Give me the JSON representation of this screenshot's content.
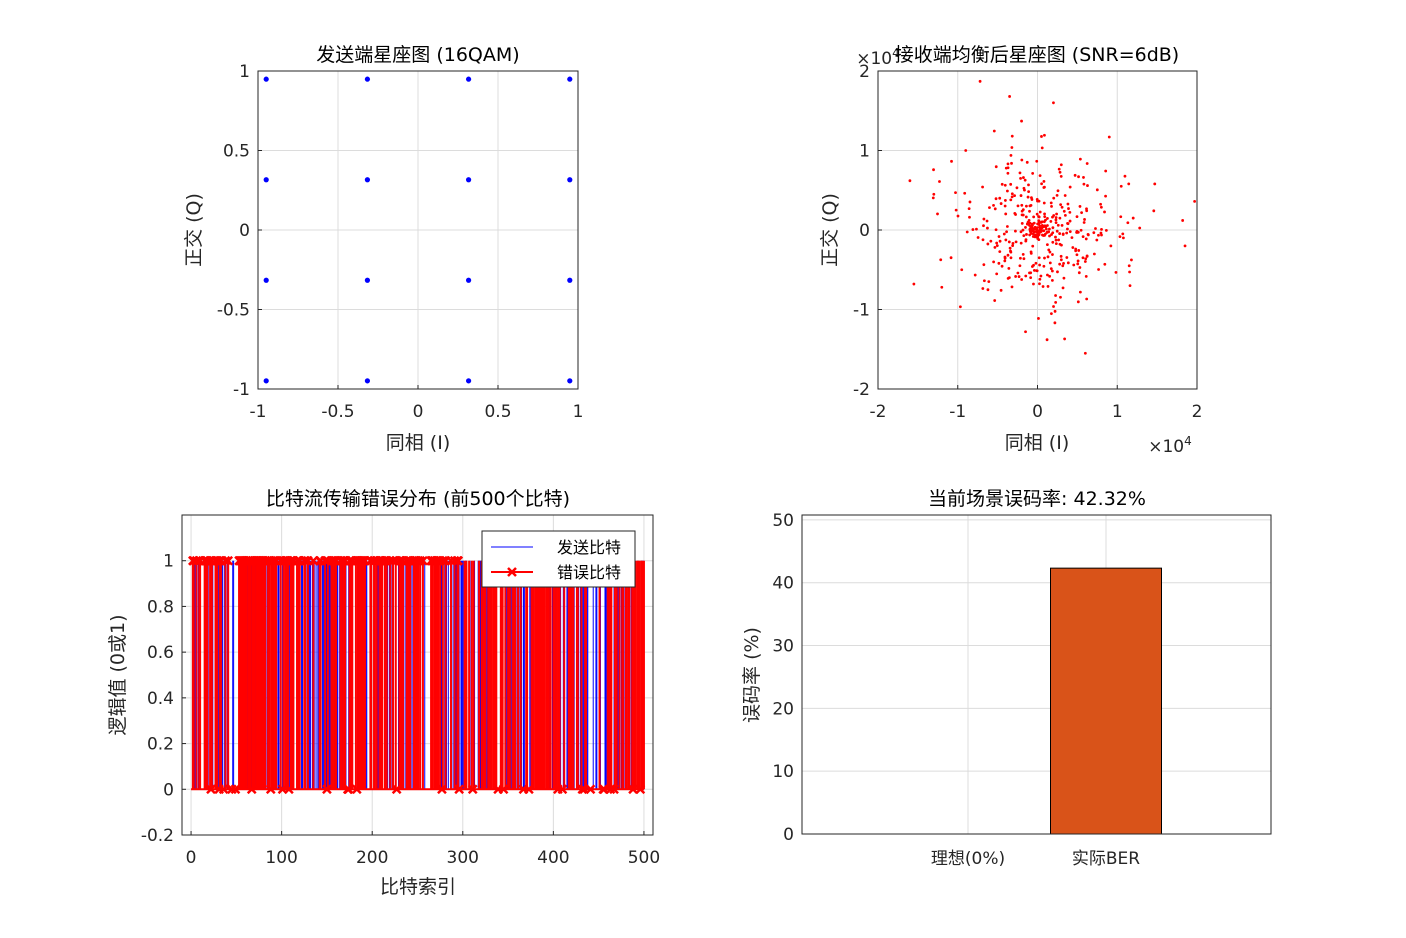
{
  "chart_data": [
    {
      "type": "scatter",
      "title": "发送端星座图 (16QAM)",
      "xlabel": "同相 (I)",
      "ylabel": "正交 (Q)",
      "xlim": [
        -1,
        1
      ],
      "ylim": [
        -1,
        1
      ],
      "xticks": [
        -1,
        -0.5,
        0,
        0.5,
        1
      ],
      "yticks": [
        -1,
        -0.5,
        0,
        0.5,
        1
      ],
      "xtick_labels": [
        "-1",
        "-0.5",
        "0",
        "0.5",
        "1"
      ],
      "ytick_labels": [
        "-1",
        "-0.5",
        "0",
        "0.5",
        "1"
      ],
      "grid": true,
      "color": "#0000ff",
      "levels": [
        -0.9487,
        -0.3162,
        0.3162,
        0.9487
      ]
    },
    {
      "type": "scatter",
      "title": "接收端均衡后星座图 (SNR=6dB)",
      "xlabel": "同相 (I)",
      "ylabel": "正交 (Q)",
      "xlim": [
        -2,
        2
      ],
      "ylim": [
        -2,
        2
      ],
      "xticks": [
        -2,
        -1,
        0,
        1,
        2
      ],
      "yticks": [
        -2,
        -1,
        0,
        1,
        2
      ],
      "xtick_labels": [
        "-2",
        "-1",
        "0",
        "1",
        "2"
      ],
      "ytick_labels": [
        "-2",
        "-1",
        "0",
        "1",
        "2"
      ],
      "x_exponent_base": "×10",
      "x_exponent_power": "4",
      "y_exponent_base": "×10",
      "y_exponent_power": "4",
      "grid": true,
      "color": "#ff0000",
      "count": 420,
      "explicit_points": [
        [
          -1.6,
          0.62
        ],
        [
          -1.55,
          -0.68
        ],
        [
          -1.3,
          0.45
        ],
        [
          -1.2,
          -0.72
        ],
        [
          -0.72,
          1.87
        ],
        [
          -0.35,
          1.68
        ],
        [
          0.2,
          1.6
        ],
        [
          -0.2,
          1.37
        ],
        [
          1.2,
          0.15
        ],
        [
          1.16,
          -0.7
        ],
        [
          1.05,
          0.55
        ],
        [
          0.6,
          -1.55
        ],
        [
          0.12,
          -1.38
        ],
        [
          -0.15,
          -1.28
        ],
        [
          0.34,
          -1.37
        ],
        [
          1.82,
          0.12
        ],
        [
          1.85,
          -0.2
        ],
        [
          1.97,
          0.36
        ],
        [
          -0.9,
          1.0
        ],
        [
          0.9,
          1.17
        ],
        [
          1.15,
          -0.45
        ],
        [
          0.92,
          -0.2
        ],
        [
          -0.95,
          -0.5
        ],
        [
          -1.02,
          0.25
        ]
      ]
    },
    {
      "type": "bar",
      "title": "比特流传输错误分布 (前500个比特)",
      "xlabel": "比特索引",
      "ylabel": "逻辑值 (0或1)",
      "xlim": [
        -10,
        510
      ],
      "ylim": [
        -0.2,
        1.2
      ],
      "xticks": [
        0,
        100,
        200,
        300,
        400,
        500
      ],
      "yticks": [
        -0.2,
        0,
        0.2,
        0.4,
        0.6,
        0.8,
        1
      ],
      "xtick_labels": [
        "0",
        "100",
        "200",
        "300",
        "400",
        "500"
      ],
      "ytick_labels": [
        "-0.2",
        "0",
        "0.2",
        "0.4",
        "0.6",
        "0.8",
        "1"
      ],
      "grid": true,
      "n_bits": 500,
      "series": [
        {
          "name": "发送比特",
          "color": "#0000ff"
        },
        {
          "name": "错误比特",
          "color": "#ff0000"
        }
      ],
      "legend_location": "top-right"
    },
    {
      "type": "bar",
      "title": "当前场景误码率: 42.32%",
      "xlabel": "",
      "ylabel": "误码率 (%)",
      "categories": [
        "理想(0%)",
        "实际BER"
      ],
      "values": [
        0,
        42.32
      ],
      "ylim": [
        0,
        50.78
      ],
      "yticks": [
        0,
        10,
        20,
        30,
        40,
        50
      ],
      "ytick_labels": [
        "0",
        "10",
        "20",
        "30",
        "40",
        "50"
      ],
      "grid": true,
      "color": "#d95319",
      "edgecolor": "#000000"
    }
  ]
}
